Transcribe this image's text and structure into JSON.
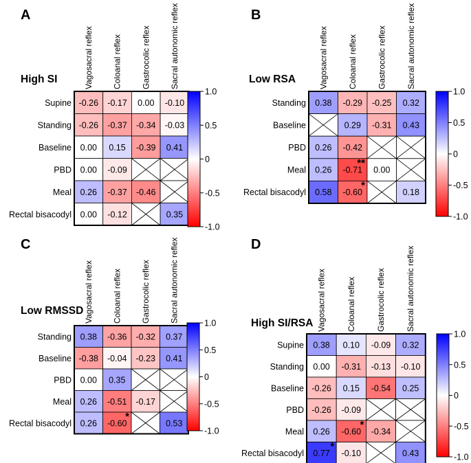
{
  "figure": {
    "colorbar_ticks": [
      "1.0",
      "0.5",
      "0",
      "-0.5",
      "-1.0"
    ],
    "colors": {
      "positive": "#0000ff",
      "neutral": "#ffffff",
      "negative": "#ff0000"
    }
  },
  "chart_data": [
    {
      "type": "heatmap",
      "panel_letter": "A",
      "title": "High SI",
      "columns": [
        "Vagosacral reflex",
        "Coloanal reflex",
        "Gastrocolic reflex",
        "Sacral autonomic reflex"
      ],
      "rows": [
        "Supine",
        "Standing",
        "Baseline",
        "PBD",
        "Meal",
        "Rectal bisacodyl"
      ],
      "values": [
        [
          -0.26,
          -0.17,
          0.0,
          -0.1
        ],
        [
          -0.26,
          -0.37,
          -0.34,
          -0.03
        ],
        [
          0.0,
          0.15,
          -0.39,
          0.41
        ],
        [
          0.0,
          -0.09,
          null,
          null
        ],
        [
          0.26,
          -0.37,
          -0.46,
          null
        ],
        [
          0.0,
          -0.12,
          null,
          0.35
        ]
      ],
      "labels": [
        [
          "-0.26",
          "-0.17",
          "0.00",
          "-0.10"
        ],
        [
          "-0.26",
          "-0.37",
          "-0.34",
          "-0.03"
        ],
        [
          "0.00",
          "0.15",
          "-0.39",
          "0.41"
        ],
        [
          "0.00",
          "-0.09",
          "",
          ""
        ],
        [
          "0.26",
          "-0.37",
          "-0.46",
          ""
        ],
        [
          "0.00",
          "-0.12",
          "",
          "0.35"
        ]
      ],
      "stars": [
        [
          "",
          "",
          "",
          ""
        ],
        [
          "",
          "",
          "",
          ""
        ],
        [
          "",
          "",
          "",
          ""
        ],
        [
          "",
          "",
          "",
          ""
        ],
        [
          "",
          "",
          "",
          ""
        ],
        [
          "",
          "",
          "",
          ""
        ]
      ],
      "color_range": [
        -1.0,
        1.0
      ]
    },
    {
      "type": "heatmap",
      "panel_letter": "B",
      "title": "Low RSA",
      "columns": [
        "Vagosacral reflex",
        "Coloanal reflex",
        "Gastrocolic reflex",
        "Sacral autonomic reflex"
      ],
      "rows": [
        "Standing",
        "Baseline",
        "PBD",
        "Meal",
        "Rectal bisacodyl"
      ],
      "values": [
        [
          0.38,
          -0.29,
          -0.25,
          0.32
        ],
        [
          null,
          0.29,
          -0.31,
          0.43
        ],
        [
          0.26,
          -0.42,
          null,
          null
        ],
        [
          0.26,
          -0.71,
          0.0,
          null
        ],
        [
          0.58,
          -0.6,
          null,
          0.18
        ]
      ],
      "labels": [
        [
          "0.38",
          "-0.29",
          "-0.25",
          "0.32"
        ],
        [
          "",
          "0.29",
          "-0.31",
          "0.43"
        ],
        [
          "0.26",
          "-0.42",
          "",
          ""
        ],
        [
          "0.26",
          "-0.71",
          "0.00",
          ""
        ],
        [
          "0.58",
          "-0.60",
          "",
          "0.18"
        ]
      ],
      "stars": [
        [
          "",
          "",
          "",
          ""
        ],
        [
          "",
          "",
          "",
          ""
        ],
        [
          "",
          "",
          "",
          ""
        ],
        [
          "",
          "**",
          "",
          ""
        ],
        [
          "",
          "*",
          "",
          ""
        ]
      ],
      "color_range": [
        -1.0,
        1.0
      ]
    },
    {
      "type": "heatmap",
      "panel_letter": "C",
      "title": "Low RMSSD",
      "columns": [
        "Vagosacral reflex",
        "Coloanal reflex",
        "Gastrocolic reflex",
        "Sacral autonomic reflex"
      ],
      "rows": [
        "Standing",
        "Baseline",
        "PBD",
        "Meal",
        "Rectal bisacodyl"
      ],
      "values": [
        [
          0.38,
          -0.36,
          -0.32,
          0.37
        ],
        [
          -0.38,
          -0.04,
          -0.23,
          0.41
        ],
        [
          0.0,
          0.35,
          null,
          null
        ],
        [
          0.26,
          -0.51,
          -0.17,
          null
        ],
        [
          0.26,
          -0.6,
          null,
          0.53
        ]
      ],
      "labels": [
        [
          "0.38",
          "-0.36",
          "-0.32",
          "0.37"
        ],
        [
          "-0.38",
          "-0.04",
          "-0.23",
          "0.41"
        ],
        [
          "0.00",
          "0.35",
          "",
          ""
        ],
        [
          "0.26",
          "-0.51",
          "-0.17",
          ""
        ],
        [
          "0.26",
          "-0.60",
          "",
          "0.53"
        ]
      ],
      "stars": [
        [
          "",
          "",
          "",
          ""
        ],
        [
          "",
          "",
          "",
          ""
        ],
        [
          "",
          "",
          "",
          ""
        ],
        [
          "",
          "",
          "",
          ""
        ],
        [
          "",
          "*",
          "",
          ""
        ]
      ],
      "color_range": [
        -1.0,
        1.0
      ]
    },
    {
      "type": "heatmap",
      "panel_letter": "D",
      "title": "High SI/RSA",
      "columns": [
        "Vagosacral reflex",
        "Coloanal reflex",
        "Gastrocolic reflex",
        "Sacral autonomic reflex"
      ],
      "rows": [
        "Supine",
        "Standing",
        "Baseline",
        "PBD",
        "Meal",
        "Rectal bisacodyl"
      ],
      "values": [
        [
          0.38,
          0.1,
          -0.09,
          0.32
        ],
        [
          0.0,
          -0.31,
          -0.13,
          -0.1
        ],
        [
          -0.26,
          0.15,
          -0.54,
          0.25
        ],
        [
          -0.26,
          -0.09,
          null,
          null
        ],
        [
          0.26,
          -0.6,
          -0.34,
          null
        ],
        [
          0.77,
          -0.1,
          null,
          0.43
        ]
      ],
      "labels": [
        [
          "0.38",
          "0.10",
          "-0.09",
          "0.32"
        ],
        [
          "0.00",
          "-0.31",
          "-0.13",
          "-0.10"
        ],
        [
          "-0.26",
          "0.15",
          "-0.54",
          "0.25"
        ],
        [
          "-0.26",
          "-0.09",
          "",
          ""
        ],
        [
          "0.26",
          "-0.60",
          "-0.34",
          ""
        ],
        [
          "0.77",
          "-0.10",
          "",
          "0.43"
        ]
      ],
      "stars": [
        [
          "",
          "",
          "",
          ""
        ],
        [
          "",
          "",
          "",
          ""
        ],
        [
          "",
          "",
          "",
          ""
        ],
        [
          "",
          "",
          "",
          ""
        ],
        [
          "",
          "*",
          "",
          ""
        ],
        [
          "*",
          "",
          "",
          ""
        ]
      ],
      "color_range": [
        -1.0,
        1.0
      ]
    }
  ]
}
